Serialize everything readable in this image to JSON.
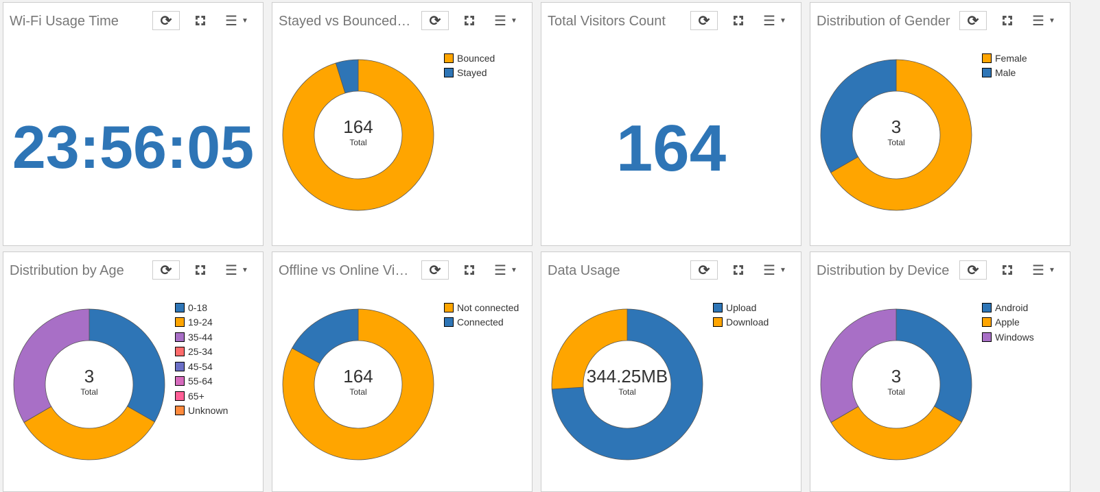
{
  "colors": {
    "blue": "#2e75b6",
    "orange": "#ffa500",
    "purple": "#a86fc6",
    "accent": "#2e75b6"
  },
  "panels": [
    {
      "title": "Wi-Fi Usage Time",
      "type": "number",
      "value": "23:56:05"
    },
    {
      "title": "Stayed vs Bounced Visitors",
      "type": "donut",
      "center_value": "164",
      "center_label": "Total",
      "slices": [
        {
          "label": "Bounced",
          "color": "#ffa500",
          "fraction": 0.952
        },
        {
          "label": "Stayed",
          "color": "#2e75b6",
          "fraction": 0.048
        }
      ]
    },
    {
      "title": "Total Visitors Count",
      "type": "number",
      "value": "164"
    },
    {
      "title": "Distribution of Gender",
      "type": "donut",
      "center_value": "3",
      "center_label": "Total",
      "slices": [
        {
          "label": "Female",
          "color": "#ffa500",
          "fraction": 0.667
        },
        {
          "label": "Male",
          "color": "#2e75b6",
          "fraction": 0.333
        }
      ]
    },
    {
      "title": "Distribution by Age",
      "type": "donut",
      "center_value": "3",
      "center_label": "Total",
      "slices": [
        {
          "label": "0-18",
          "color": "#2e75b6",
          "fraction": 0.333
        },
        {
          "label": "19-24",
          "color": "#ffa500",
          "fraction": 0.333
        },
        {
          "label": "35-44",
          "color": "#a86fc6",
          "fraction": 0.334
        },
        {
          "label": "25-34",
          "color": "#ff6b6b",
          "fraction": 0
        },
        {
          "label": "45-54",
          "color": "#6b6fc6",
          "fraction": 0
        },
        {
          "label": "55-64",
          "color": "#d66bbd",
          "fraction": 0
        },
        {
          "label": "65+",
          "color": "#ff5f96",
          "fraction": 0
        },
        {
          "label": "Unknown",
          "color": "#ff8a3d",
          "fraction": 0
        }
      ]
    },
    {
      "title": "Offline vs Online Visitors",
      "type": "donut",
      "center_value": "164",
      "center_label": "Total",
      "slices": [
        {
          "label": "Not connected",
          "color": "#ffa500",
          "fraction": 0.83
        },
        {
          "label": "Connected",
          "color": "#2e75b6",
          "fraction": 0.17
        }
      ]
    },
    {
      "title": "Data Usage",
      "type": "donut",
      "center_value": "344.25MB",
      "center_label": "Total",
      "slices": [
        {
          "label": "Upload",
          "color": "#2e75b6",
          "fraction": 0.74
        },
        {
          "label": "Download",
          "color": "#ffa500",
          "fraction": 0.26
        }
      ]
    },
    {
      "title": "Distribution by Device",
      "type": "donut",
      "center_value": "3",
      "center_label": "Total",
      "slices": [
        {
          "label": "Android",
          "color": "#2e75b6",
          "fraction": 0.333
        },
        {
          "label": "Apple",
          "color": "#ffa500",
          "fraction": 0.333
        },
        {
          "label": "Windows",
          "color": "#a86fc6",
          "fraction": 0.334
        }
      ]
    }
  ],
  "icons": {
    "refresh": "⟳",
    "fullscreen": "expand-icon",
    "menu": "☰",
    "caret": "▼"
  }
}
